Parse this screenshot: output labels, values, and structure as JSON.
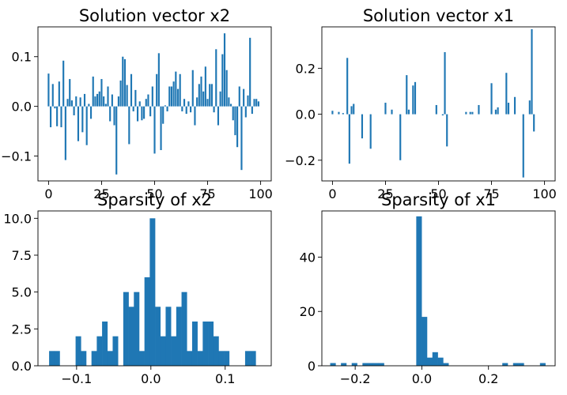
{
  "chart_data": [
    {
      "type": "bar",
      "title": "Solution vector x2",
      "xlim": [
        -5,
        105
      ],
      "ylim": [
        -0.15,
        0.16
      ],
      "xticks": [
        0,
        25,
        50,
        75,
        100
      ],
      "yticks": [
        -0.1,
        0.0,
        0.1
      ],
      "ytick_labels": [
        "−0.1",
        "0.0",
        "0.1"
      ],
      "x": [
        0,
        1,
        2,
        3,
        4,
        5,
        6,
        7,
        8,
        9,
        10,
        11,
        12,
        13,
        14,
        15,
        16,
        17,
        18,
        19,
        20,
        21,
        22,
        23,
        24,
        25,
        26,
        27,
        28,
        29,
        30,
        31,
        32,
        33,
        34,
        35,
        36,
        37,
        38,
        39,
        40,
        41,
        42,
        43,
        44,
        45,
        46,
        47,
        48,
        49,
        50,
        51,
        52,
        53,
        54,
        55,
        56,
        57,
        58,
        59,
        60,
        61,
        62,
        63,
        64,
        65,
        66,
        67,
        68,
        69,
        70,
        71,
        72,
        73,
        74,
        75,
        76,
        77,
        78,
        79,
        80,
        81,
        82,
        83,
        84,
        85,
        86,
        87,
        88,
        89,
        90,
        91,
        92,
        93,
        94,
        95,
        96,
        97,
        98,
        99
      ],
      "values": [
        0.066,
        -0.042,
        0.045,
        -0.004,
        -0.04,
        0.05,
        -0.042,
        0.092,
        -0.108,
        0.015,
        0.055,
        0.012,
        -0.018,
        0.02,
        -0.07,
        0.018,
        -0.052,
        0.025,
        -0.078,
        0.005,
        -0.025,
        0.06,
        0.02,
        0.025,
        0.03,
        0.055,
        0.02,
        0.005,
        0.04,
        -0.03,
        0.024,
        -0.038,
        -0.137,
        0.02,
        0.052,
        0.1,
        0.095,
        0.043,
        -0.076,
        0.065,
        -0.01,
        0.033,
        -0.03,
        0.01,
        -0.028,
        -0.025,
        0.015,
        0.024,
        -0.02,
        0.04,
        -0.095,
        0.065,
        0.107,
        -0.088,
        -0.035,
        0.002,
        -0.01,
        0.04,
        0.04,
        0.05,
        0.07,
        0.035,
        0.065,
        -0.01,
        0.015,
        -0.015,
        0.01,
        -0.012,
        0.073,
        -0.038,
        0.018,
        0.045,
        0.06,
        0.03,
        0.08,
        0.015,
        0.045,
        0.045,
        -0.012,
        0.115,
        -0.038,
        0.03,
        0.105,
        0.147,
        0.073,
        0.018,
        0.005,
        -0.028,
        -0.058,
        -0.082,
        0.04,
        -0.128,
        0.035,
        -0.022,
        0.022,
        0.138,
        -0.015,
        0.015,
        0.015,
        0.01
      ],
      "color": "#1f77b4"
    },
    {
      "type": "bar",
      "title": "Solution vector x1",
      "xlim": [
        -5,
        105
      ],
      "ylim": [
        -0.29,
        0.38
      ],
      "xticks": [
        0,
        25,
        50,
        75,
        100
      ],
      "yticks": [
        -0.2,
        0.0,
        0.2
      ],
      "ytick_labels": [
        "−0.2",
        "0.0",
        "0.2"
      ],
      "x": [
        0,
        1,
        2,
        3,
        4,
        5,
        6,
        7,
        8,
        9,
        10,
        11,
        12,
        13,
        14,
        15,
        16,
        17,
        18,
        19,
        20,
        21,
        22,
        23,
        24,
        25,
        26,
        27,
        28,
        29,
        30,
        31,
        32,
        33,
        34,
        35,
        36,
        37,
        38,
        39,
        40,
        41,
        42,
        43,
        44,
        45,
        46,
        47,
        48,
        49,
        50,
        51,
        52,
        53,
        54,
        55,
        56,
        57,
        58,
        59,
        60,
        61,
        62,
        63,
        64,
        65,
        66,
        67,
        68,
        69,
        70,
        71,
        72,
        73,
        74,
        75,
        76,
        77,
        78,
        79,
        80,
        81,
        82,
        83,
        84,
        85,
        86,
        87,
        88,
        89,
        90,
        91,
        92,
        93,
        94,
        95,
        96,
        97,
        98,
        99
      ],
      "values": [
        0.015,
        0,
        0,
        0.01,
        0,
        0.005,
        0,
        0.245,
        -0.215,
        0.035,
        0.045,
        0,
        0,
        0,
        -0.105,
        0,
        0,
        0,
        -0.15,
        0,
        0,
        0,
        0,
        0,
        0,
        0.05,
        0,
        0,
        0.02,
        0,
        0,
        0,
        -0.2,
        0,
        0,
        0.17,
        0.02,
        0,
        0.125,
        0.14,
        0,
        0,
        0,
        0,
        0,
        0,
        0,
        0,
        0,
        0.04,
        0,
        0,
        -0.005,
        0.27,
        -0.14,
        0,
        0,
        0,
        0,
        0,
        0,
        0,
        0,
        0.01,
        0,
        0.01,
        0.01,
        0,
        0,
        0.04,
        0,
        0,
        0,
        0,
        0,
        0.135,
        0,
        0.02,
        0.03,
        0,
        0,
        0,
        0.18,
        0.05,
        0,
        0,
        0.075,
        0,
        0,
        0,
        -0.275,
        0,
        0,
        0.06,
        0.37,
        -0.075,
        0,
        0,
        0,
        0
      ],
      "color": "#1f77b4"
    },
    {
      "type": "bar",
      "title": "Sparsity of x2",
      "xlim": [
        -0.152,
        0.162
      ],
      "ylim": [
        0,
        10.5
      ],
      "xticks": [
        -0.1,
        0.0,
        0.1
      ],
      "xtick_labels": [
        "−0.1",
        "0.0",
        "0.1"
      ],
      "yticks": [
        0.0,
        2.5,
        5.0,
        7.5,
        10.0
      ],
      "ytick_labels": [
        "0.0",
        "2.5",
        "5.0",
        "7.5",
        "10.0"
      ],
      "bin_start": -0.137,
      "bin_width": 0.00713,
      "values": [
        1,
        1,
        0,
        0,
        0,
        2,
        1,
        0,
        1,
        2,
        3,
        1,
        2,
        0,
        5,
        4,
        5,
        1,
        6,
        10,
        4,
        2,
        4,
        2,
        4,
        5,
        1,
        3,
        1,
        3,
        3,
        2,
        1,
        1,
        0,
        0,
        0,
        1,
        1
      ],
      "color": "#1f77b4"
    },
    {
      "type": "bar",
      "title": "Sparsity of x1",
      "xlim": [
        -0.3,
        0.4
      ],
      "ylim": [
        0,
        57
      ],
      "xticks": [
        -0.2,
        0.0,
        0.2
      ],
      "xtick_labels": [
        "−0.2",
        "0.0",
        "0.2"
      ],
      "yticks": [
        0,
        20,
        40
      ],
      "ytick_labels": [
        "0",
        "20",
        "40"
      ],
      "bin_start": -0.275,
      "bin_width": 0.01614,
      "values": [
        1,
        0,
        1,
        0,
        1,
        0,
        1,
        1,
        1,
        1,
        0,
        0,
        0,
        0,
        0,
        0,
        55,
        18,
        3,
        5,
        3,
        1,
        0,
        0,
        0,
        0,
        0,
        0,
        0,
        0,
        0,
        0,
        1,
        0,
        1,
        1,
        0,
        0,
        0,
        1,
        0,
        0,
        0,
        0,
        0,
        0,
        1
      ],
      "color": "#1f77b4"
    }
  ]
}
